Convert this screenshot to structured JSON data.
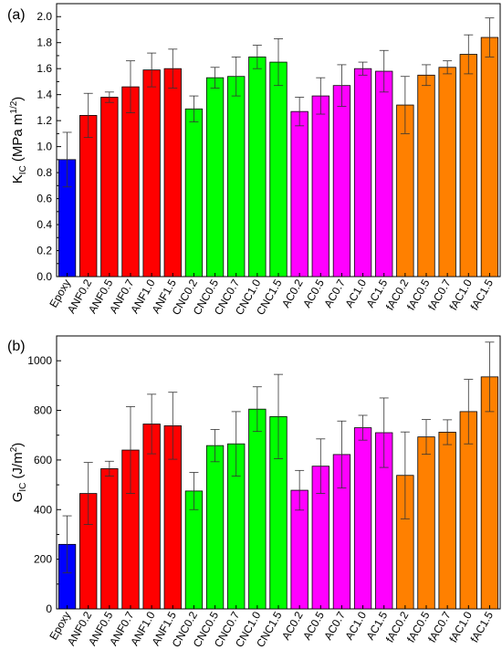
{
  "colors": {
    "Epoxy": "#0000ff",
    "ANF": "#ff0000",
    "CNC": "#00ff00",
    "AC": "#ff00ff",
    "fAC": "#ff8000"
  },
  "chart_data": [
    {
      "type": "bar",
      "panel_label": "(a)",
      "ylabel_main": "K",
      "ylabel_sub": "IC",
      "ylabel_rest": " (MPa m",
      "ylabel_sup": "1/2",
      "ylabel_end": ")",
      "ylim": [
        0,
        2.1
      ],
      "yticks": [
        0.0,
        0.2,
        0.4,
        0.6,
        0.8,
        1.0,
        1.2,
        1.4,
        1.6,
        1.8,
        2.0
      ],
      "ytick_labels": [
        "0.0",
        "0.2",
        "0.4",
        "0.6",
        "0.8",
        "1.0",
        "1.2",
        "1.4",
        "1.6",
        "1.8",
        "2.0"
      ],
      "categories": [
        "Epoxy",
        "ANF0.2",
        "ANF0.5",
        "ANF0.7",
        "ANF1.0",
        "ANF1.5",
        "CNC0.2",
        "CNC0.5",
        "CNC0.7",
        "CNC1.0",
        "CNC1.5",
        "AC0.2",
        "AC0.5",
        "AC0.7",
        "AC1.0",
        "AC1.5",
        "fAC0.2",
        "fAC0.5",
        "fAC0.7",
        "fAC1.0",
        "fAC1.5"
      ],
      "groups": [
        "Epoxy",
        "ANF",
        "ANF",
        "ANF",
        "ANF",
        "ANF",
        "CNC",
        "CNC",
        "CNC",
        "CNC",
        "CNC",
        "AC",
        "AC",
        "AC",
        "AC",
        "AC",
        "fAC",
        "fAC",
        "fAC",
        "fAC",
        "fAC"
      ],
      "values": [
        0.9,
        1.24,
        1.38,
        1.46,
        1.59,
        1.6,
        1.29,
        1.53,
        1.54,
        1.69,
        1.65,
        1.27,
        1.39,
        1.47,
        1.6,
        1.58,
        1.32,
        1.55,
        1.61,
        1.71,
        1.84
      ],
      "errors": [
        0.21,
        0.17,
        0.04,
        0.2,
        0.13,
        0.15,
        0.1,
        0.08,
        0.15,
        0.09,
        0.18,
        0.11,
        0.14,
        0.16,
        0.05,
        0.16,
        0.22,
        0.08,
        0.05,
        0.15,
        0.15
      ],
      "xlabel": "",
      "grid": false
    },
    {
      "type": "bar",
      "panel_label": "(b)",
      "ylabel_main": "G",
      "ylabel_sub": "IC",
      "ylabel_rest": " (J/m",
      "ylabel_sup": "2",
      "ylabel_end": ")",
      "ylim": [
        0,
        1100
      ],
      "yticks": [
        0,
        200,
        400,
        600,
        800,
        1000
      ],
      "ytick_labels": [
        "0",
        "200",
        "400",
        "600",
        "800",
        "1000"
      ],
      "categories": [
        "Epoxy",
        "ANF0.2",
        "ANF0.5",
        "ANF0.7",
        "ANF1.0",
        "ANF1.5",
        "CNC0.2",
        "CNC0.5",
        "CNC0.7",
        "CNC1.0",
        "CNC1.5",
        "AC0.2",
        "AC0.5",
        "AC0.7",
        "AC1.0",
        "AC1.5",
        "fAC0.2",
        "fAC0.5",
        "fAC0.7",
        "fAC1.0",
        "fAC1.5"
      ],
      "groups": [
        "Epoxy",
        "ANF",
        "ANF",
        "ANF",
        "ANF",
        "ANF",
        "CNC",
        "CNC",
        "CNC",
        "CNC",
        "CNC",
        "AC",
        "AC",
        "AC",
        "AC",
        "AC",
        "fAC",
        "fAC",
        "fAC",
        "fAC",
        "fAC"
      ],
      "values": [
        260,
        465,
        565,
        640,
        745,
        738,
        475,
        658,
        665,
        805,
        775,
        478,
        575,
        622,
        730,
        710,
        538,
        693,
        712,
        795,
        935
      ],
      "errors": [
        115,
        125,
        30,
        175,
        120,
        135,
        75,
        65,
        130,
        90,
        170,
        80,
        110,
        135,
        50,
        140,
        175,
        70,
        50,
        130,
        140
      ],
      "xlabel": "",
      "grid": false
    }
  ]
}
